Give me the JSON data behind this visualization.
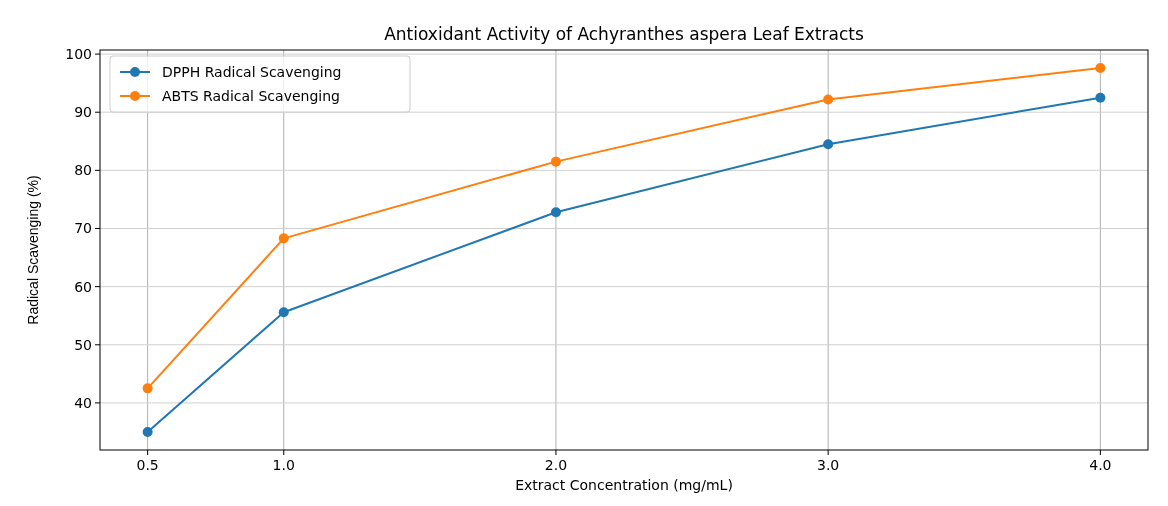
{
  "chart_data": {
    "type": "line",
    "title": "Antioxidant Activity of Achyranthes aspera Leaf Extracts",
    "xlabel": "Extract Concentration (mg/mL)",
    "ylabel": "Radical Scavenging (%)",
    "x": [
      0.5,
      1.0,
      2.0,
      3.0,
      4.0
    ],
    "series": [
      {
        "name": "DPPH Radical Scavenging",
        "color": "#1f77b4",
        "values": [
          35.0,
          55.6,
          72.8,
          84.5,
          92.5
        ]
      },
      {
        "name": "ABTS Radical Scavenging",
        "color": "#ff7f0e",
        "values": [
          42.5,
          68.3,
          81.5,
          92.2,
          97.6
        ]
      }
    ],
    "xlim": [
      0.325,
      4.175
    ],
    "xticks": [
      {
        "value": 0.5,
        "label": "0.5"
      },
      {
        "value": 1,
        "label": "1.0"
      },
      {
        "value": 2,
        "label": "2.0"
      },
      {
        "value": 3,
        "label": "3.0"
      },
      {
        "value": 4,
        "label": "4.0"
      }
    ],
    "ylim": [
      31.9,
      100.7
    ],
    "yticks": [
      40,
      50,
      60,
      70,
      80,
      90,
      100
    ],
    "grid": true,
    "legend": "top left",
    "marker": "circle",
    "line_style": "solid"
  }
}
